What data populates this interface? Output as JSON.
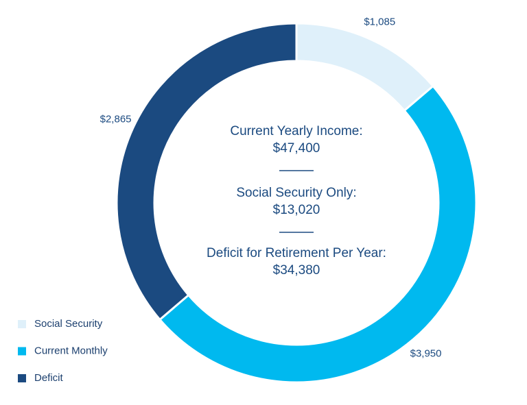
{
  "chart_data": {
    "type": "donut",
    "categories": [
      "Social Security",
      "Current Monthly",
      "Deficit"
    ],
    "values": [
      1085,
      3950,
      2865
    ],
    "value_labels": [
      "$1,085",
      "$3,950",
      "$2,865"
    ],
    "colors": [
      "#dff0fa",
      "#00b9ef",
      "#1b4a80"
    ],
    "center_lines": [
      {
        "label": "Current Yearly Income:",
        "value": "$47,400"
      },
      {
        "label": "Social Security Only:",
        "value": "$13,020"
      },
      {
        "label": "Deficit for Retirement Per Year:",
        "value": "$34,380"
      }
    ],
    "legend": "bottom-left"
  }
}
